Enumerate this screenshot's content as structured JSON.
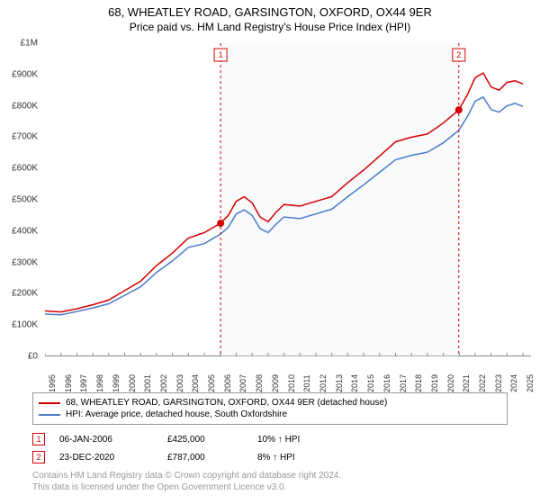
{
  "title": {
    "main": "68, WHEATLEY ROAD, GARSINGTON, OXFORD, OX44 9ER",
    "sub": "Price paid vs. HM Land Registry's House Price Index (HPI)"
  },
  "chart": {
    "type": "line",
    "background_color": "#ffffff",
    "shaded_region_color": "#eaf0f7",
    "plot_border_color": "#888888",
    "y_axis": {
      "min": 0,
      "max": 1000000,
      "tick_step": 100000,
      "labels": [
        "£0",
        "£100K",
        "£200K",
        "£300K",
        "£400K",
        "£500K",
        "£600K",
        "£700K",
        "£800K",
        "£900K",
        "£1M"
      ],
      "label_color": "#333333",
      "label_fontsize": 10
    },
    "x_axis": {
      "min": 1995,
      "max": 2025.5,
      "ticks": [
        1995,
        1996,
        1997,
        1998,
        1999,
        2000,
        2001,
        2002,
        2003,
        2004,
        2005,
        2006,
        2007,
        2008,
        2009,
        2010,
        2011,
        2012,
        2013,
        2014,
        2015,
        2016,
        2017,
        2018,
        2019,
        2020,
        2021,
        2022,
        2023,
        2024,
        2025
      ],
      "label_color": "#333333",
      "label_fontsize": 9
    },
    "series": [
      {
        "id": "property",
        "label": "68, WHEATLEY ROAD, GARSINGTON, OXFORD, OX44 9ER (detached house)",
        "color": "#d40000",
        "line_width": 1.5,
        "data": [
          [
            1995,
            145000
          ],
          [
            1996,
            142000
          ],
          [
            1997,
            152000
          ],
          [
            1998,
            165000
          ],
          [
            1999,
            180000
          ],
          [
            2000,
            210000
          ],
          [
            2001,
            240000
          ],
          [
            2002,
            290000
          ],
          [
            2003,
            330000
          ],
          [
            2004,
            378000
          ],
          [
            2005,
            395000
          ],
          [
            2006,
            425000
          ],
          [
            2006.5,
            450000
          ],
          [
            2007,
            495000
          ],
          [
            2007.5,
            510000
          ],
          [
            2008,
            490000
          ],
          [
            2008.5,
            445000
          ],
          [
            2009,
            430000
          ],
          [
            2009.5,
            460000
          ],
          [
            2010,
            485000
          ],
          [
            2011,
            480000
          ],
          [
            2012,
            495000
          ],
          [
            2013,
            510000
          ],
          [
            2014,
            555000
          ],
          [
            2015,
            595000
          ],
          [
            2016,
            640000
          ],
          [
            2017,
            685000
          ],
          [
            2018,
            700000
          ],
          [
            2019,
            710000
          ],
          [
            2020,
            745000
          ],
          [
            2020.97,
            787000
          ],
          [
            2021.5,
            835000
          ],
          [
            2022,
            890000
          ],
          [
            2022.5,
            905000
          ],
          [
            2023,
            860000
          ],
          [
            2023.5,
            850000
          ],
          [
            2024,
            875000
          ],
          [
            2024.5,
            880000
          ],
          [
            2025,
            870000
          ]
        ]
      },
      {
        "id": "hpi",
        "label": "HPI: Average price, detached house, South Oxfordshire",
        "color": "#4a7bc8",
        "line_width": 1.5,
        "data": [
          [
            1995,
            135000
          ],
          [
            1996,
            133000
          ],
          [
            1997,
            143000
          ],
          [
            1998,
            155000
          ],
          [
            1999,
            168000
          ],
          [
            2000,
            195000
          ],
          [
            2001,
            222000
          ],
          [
            2002,
            268000
          ],
          [
            2003,
            305000
          ],
          [
            2004,
            348000
          ],
          [
            2005,
            360000
          ],
          [
            2006,
            390000
          ],
          [
            2006.5,
            412000
          ],
          [
            2007,
            455000
          ],
          [
            2007.5,
            468000
          ],
          [
            2008,
            450000
          ],
          [
            2008.5,
            408000
          ],
          [
            2009,
            395000
          ],
          [
            2009.5,
            422000
          ],
          [
            2010,
            445000
          ],
          [
            2011,
            440000
          ],
          [
            2012,
            455000
          ],
          [
            2013,
            470000
          ],
          [
            2014,
            510000
          ],
          [
            2015,
            548000
          ],
          [
            2016,
            588000
          ],
          [
            2017,
            628000
          ],
          [
            2018,
            642000
          ],
          [
            2019,
            652000
          ],
          [
            2020,
            682000
          ],
          [
            2020.97,
            722000
          ],
          [
            2021.5,
            765000
          ],
          [
            2022,
            815000
          ],
          [
            2022.5,
            828000
          ],
          [
            2023,
            788000
          ],
          [
            2023.5,
            780000
          ],
          [
            2024,
            800000
          ],
          [
            2024.5,
            808000
          ],
          [
            2025,
            798000
          ]
        ]
      }
    ],
    "sale_markers": [
      {
        "n": "1",
        "x": 2006.02,
        "y": 425000,
        "color": "#d40000"
      },
      {
        "n": "2",
        "x": 2020.97,
        "y": 787000,
        "color": "#d40000"
      }
    ],
    "sale_dot_radius": 4
  },
  "legend": {
    "border_color": "#999999",
    "fontsize": 10
  },
  "markers_table": [
    {
      "n": "1",
      "date": "06-JAN-2006",
      "price": "£425,000",
      "pct": "10% ↑ HPI",
      "color": "#d40000"
    },
    {
      "n": "2",
      "date": "23-DEC-2020",
      "price": "£787,000",
      "pct": "8% ↑ HPI",
      "color": "#d40000"
    }
  ],
  "footer": {
    "line1": "Contains HM Land Registry data © Crown copyright and database right 2024.",
    "line2": "This data is licensed under the Open Government Licence v3.0.",
    "color": "#999999",
    "fontsize": 10
  }
}
